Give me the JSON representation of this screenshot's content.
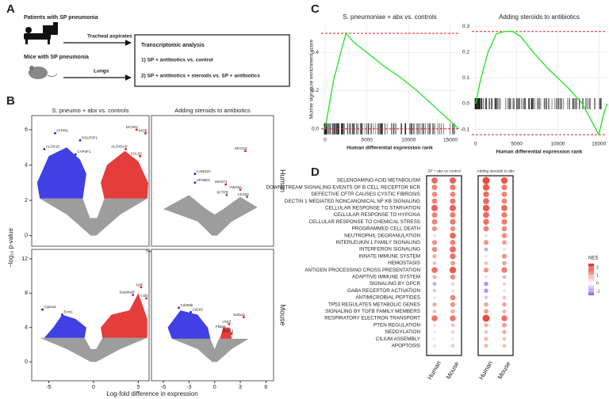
{
  "panel_a": {
    "label": "A",
    "patients": "Patients with SP pneumonia",
    "mice": "Mice with SP pneumonia",
    "tracheal": "Tracheal aspirates",
    "lungs": "Lungs",
    "box_title": "Transcriptomic analysis",
    "item1": "1) SP + antibiotics vs. control",
    "item2": "2) SP + antibiotics + steroids vs. SP + antibiotics"
  },
  "panel_b": {
    "type": "volcano",
    "label": "B",
    "col_titles": [
      "S. pneumo + abx vs. controls",
      "Adding steroids to antibiotics"
    ],
    "row_labels": [
      "Human",
      "Mouse"
    ],
    "ylabel": "−log₁₀ p-value",
    "xlabel": "Log-fold difference in expression",
    "cols": [
      {
        "xlim": [
          -6.9,
          6.2
        ],
        "xticks": [
          -5,
          0,
          5
        ]
      },
      {
        "xlim": [
          -7.4,
          6.9
        ],
        "xticks": [
          -6,
          -3,
          0,
          3,
          6
        ]
      }
    ],
    "rows": [
      {
        "ylim": [
          -0.6,
          6.8
        ],
        "yticks": [
          0,
          2,
          4,
          6
        ]
      },
      {
        "ylim": [
          -2.2,
          13.1
        ],
        "yticks": [
          0,
          4,
          8,
          12
        ]
      }
    ],
    "panels": [
      {
        "genes": [
          {
            "name": "FFPR6",
            "x": -4.3,
            "y": 5.8
          },
          {
            "name": "POLR3F1",
            "x": -1.5,
            "y": 5.4
          },
          {
            "name": "ALOX15",
            "x": -5.5,
            "y": 4.9
          },
          {
            "name": "CYP4F1",
            "x": -2.0,
            "y": 4.6
          },
          {
            "name": "ALOX5AP",
            "x": 3.6,
            "y": 4.9
          },
          {
            "name": "CCL20",
            "x": 5.2,
            "y": 4.5
          },
          {
            "name": "DCXR1",
            "x": 4.8,
            "y": 6.0
          },
          {
            "name": "IHOB",
            "x": 5.8,
            "y": 5.8
          }
        ]
      },
      {
        "genes": [
          {
            "name": "MYO18",
            "x": 3.6,
            "y": 4.8
          },
          {
            "name": "CARD10",
            "x": -2.3,
            "y": 3.5
          },
          {
            "name": "VPS8D1",
            "x": -2.3,
            "y": 3.0
          },
          {
            "name": "MGST1",
            "x": 1.3,
            "y": 2.9
          },
          {
            "name": "VWA5A",
            "x": 3.0,
            "y": 2.6
          },
          {
            "name": "CD163",
            "x": 3.8,
            "y": 2.2
          },
          {
            "name": "SFTPB",
            "x": 1.4,
            "y": 2.3
          }
        ]
      },
      {
        "genes": [
          {
            "name": "Saa3",
            "x": 6.6,
            "y": 12.6
          },
          {
            "name": "Ly6i",
            "x": 5.3,
            "y": 8.7
          },
          {
            "name": "Serpina3f",
            "x": 4.4,
            "y": 7.8
          },
          {
            "name": "Csf3",
            "x": 5.9,
            "y": 7.4
          },
          {
            "name": "Cyp1a1",
            "x": -5.7,
            "y": 6.1
          },
          {
            "name": "Ecm1",
            "x": -3.5,
            "y": 5.5
          }
        ]
      },
      {
        "genes": [
          {
            "name": "Cd209b",
            "x": -4.2,
            "y": 6.3
          },
          {
            "name": "Cd163",
            "x": -2.8,
            "y": 5.8
          },
          {
            "name": "Sult1a1",
            "x": 3.4,
            "y": 5.2
          },
          {
            "name": "Ucp3",
            "x": 1.7,
            "y": 4.4
          },
          {
            "name": "Fkbp5",
            "x": 1.1,
            "y": 3.8
          },
          {
            "name": "Zbtb16",
            "x": 2.0,
            "y": 3.3
          }
        ]
      }
    ]
  },
  "panel_c": {
    "type": "gsea",
    "label": "C",
    "ylabel": "Murine signature enrichment score",
    "charts": [
      {
        "title": "S. pneumoniae + abx vs. controls",
        "xlabel": "Human differential expression rank",
        "xlim": [
          -470,
          15950
        ],
        "xticks": [
          0,
          5000,
          10000,
          15000
        ],
        "ylim": [
          -0.03,
          0.55
        ],
        "yticks": [
          {
            "value": 0,
            "label": "0.0"
          },
          {
            "value": 0.2,
            "label": "0.2"
          },
          {
            "value": 0.4,
            "label": "0.4"
          }
        ],
        "bounds": [
          0.5,
          0
        ],
        "x": [
          0,
          1000,
          2000,
          2500,
          3500,
          5000,
          7000,
          9000,
          11000,
          13000,
          14500,
          15500,
          16000
        ],
        "y": [
          0,
          0.25,
          0.42,
          0.5,
          0.45,
          0.4,
          0.33,
          0.27,
          0.2,
          0.12,
          0.06,
          0.02,
          0
        ]
      },
      {
        "title": "Adding steroids to antibiotics",
        "xlabel": "Human differential expression rank",
        "xlim": [
          -470,
          15950
        ],
        "xticks": [
          0,
          5000,
          10000,
          15000
        ],
        "ylim": [
          -0.135,
          0.31
        ],
        "yticks": [
          -0.1,
          {
            "value": 0,
            "label": "0.0"
          },
          0.1,
          0.2,
          0.3
        ],
        "bounds": [
          0.28,
          -0.12
        ],
        "x": [
          0,
          500,
          1500,
          2500,
          3500,
          4500,
          5500,
          7000,
          9000,
          11000,
          13000,
          14500,
          15000,
          15500,
          16000
        ],
        "y": [
          0,
          0.08,
          0.2,
          0.27,
          0.28,
          0.28,
          0.26,
          0.2,
          0.13,
          0.07,
          0,
          -0.09,
          -0.12,
          -0.05,
          0
        ]
      }
    ]
  },
  "panel_d": {
    "type": "dotplot",
    "label": "D",
    "group_titles": [
      "SP + abx vs control",
      "Adding steroids to abx"
    ],
    "column_labels": [
      "Human",
      "Mouse",
      "Human",
      "Mouse"
    ],
    "pathways": [
      "SELENOAMINO ACID METABOLISM",
      "DOWNSTREAM SIGNALING EVENTS OF B CELL RECEPTOR BCR",
      "DEFECTIVE CFTR CAUSES CYSTIC FIBROSIS",
      "DECTIN 1 MEDIATED NONCANONICAL NF KB SIGNALING",
      "CELLULAR RESPONSE TO STARVATION",
      "CELLULAR RESPONSE TO HYPOXIA",
      "CELLULAR RESPONSE TO CHEMICAL STRESS",
      "PROGRAMMED CELL DEATH",
      "NEUTROPHIL DEGRANULATION",
      "INTERLEUKIN 1 FAMILY SIGNALING",
      "INTERFERON SIGNALING",
      "INNATE IMMUNE SYSTEM",
      "HEMOSTASIS",
      "ANTIGEN PROCESSING CROSS PRESENTATION",
      "ADAPTIVE IMMUNE SYSTEM",
      "SIGNALING BY GPCR",
      "GABA RECEPTOR ACTIVATION",
      "ANTIMICROBIAL PEPTIDES",
      "TP53 REGULATES METABOLIC GENES",
      "SIGNALING BY TGFB FAMILY MEMBERS",
      "RESPIRATORY ELECTRON TRANSPORT",
      "PTEN REGULATION",
      "NEDDYLATION",
      "CILIUM ASSEMBLY",
      "APOPTOSIS"
    ],
    "nes": [
      [
        1.8,
        1.9,
        2.2,
        2.0
      ],
      [
        1.5,
        1.6,
        2.0,
        1.6
      ],
      [
        1.4,
        1.5,
        1.7,
        1.5
      ],
      [
        1.5,
        1.6,
        1.8,
        1.5
      ],
      [
        1.9,
        1.9,
        2.0,
        1.8
      ],
      [
        1.5,
        1.6,
        1.8,
        1.6
      ],
      [
        1.5,
        1.6,
        1.7,
        1.6
      ],
      [
        1.3,
        1.4,
        1.5,
        1.4
      ],
      [
        0.4,
        1.8,
        -0.3,
        1.4
      ],
      [
        1.3,
        1.5,
        1.3,
        1.2
      ],
      [
        1.4,
        1.8,
        -0.8,
        0.4
      ],
      [
        1.0,
        1.7,
        0.3,
        1.3
      ],
      [
        0.8,
        1.2,
        0.8,
        1.1
      ],
      [
        1.7,
        2.0,
        1.3,
        1.6
      ],
      [
        0.9,
        1.4,
        0.4,
        0.9
      ],
      [
        -0.8,
        0.6,
        -1.0,
        0.6
      ],
      [
        -0.6,
        0.5,
        -1.0,
        -0.3
      ],
      [
        0.3,
        1.5,
        -0.6,
        0.8
      ],
      [
        1.0,
        1.3,
        1.1,
        1.1
      ],
      [
        0.8,
        1.0,
        1.2,
        0.9
      ],
      [
        1.7,
        1.7,
        2.2,
        1.7
      ],
      [
        0.4,
        0.8,
        1.0,
        1.2
      ],
      [
        0.3,
        0.6,
        0.8,
        1.0
      ],
      [
        0.2,
        0.3,
        0.9,
        0.8
      ],
      [
        0.4,
        0.7,
        0.9,
        0.8
      ]
    ],
    "legend_title": "NES",
    "colorbar_lim": [
      -1.5,
      2.5
    ],
    "colorbar_ticks": [
      2,
      1,
      0,
      -1
    ]
  }
}
